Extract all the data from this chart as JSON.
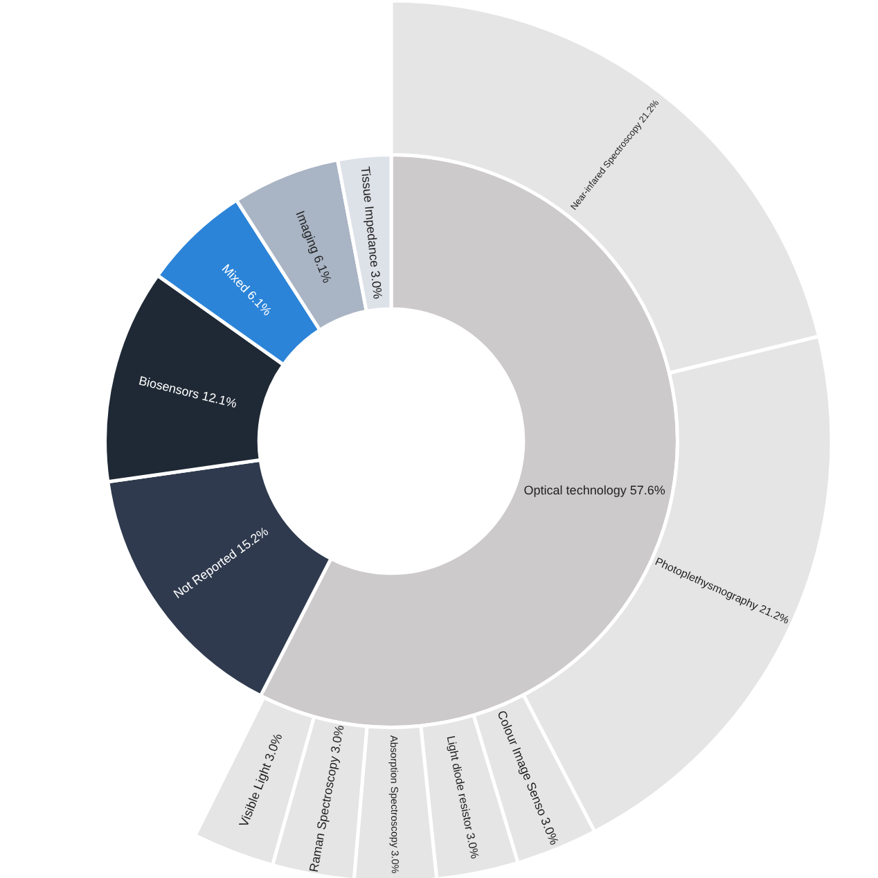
{
  "chart_data": {
    "type": "donut",
    "categories": [
      "Optical technology",
      "Not Reported",
      "Biosensors",
      "Mixed",
      "Imaging",
      "Tissue Impedance",
      "Near-infared Spectroscopy",
      "Photoplethysmography",
      "Colour Image Senso",
      "Light diode resistor",
      "Absorption Spectroscopy",
      "Raman Spectroscopy",
      "Visible Light"
    ],
    "series": [
      {
        "values": [
          57.6,
          15.2,
          12.1,
          6.1,
          6.1,
          3.0,
          null,
          null,
          null,
          null,
          null,
          null,
          null
        ],
        "value_labels": [
          "57.6%",
          "15.2%",
          "12.1%",
          "6.1%",
          "6.1%",
          "3.0%",
          null,
          null,
          null,
          null,
          null,
          null,
          null
        ],
        "colors": [
          "#cdcacb",
          "#2f3a4e",
          "#1f2935",
          "#2b84d8",
          "#a9b4c4",
          "#dde1e8",
          null,
          null,
          null,
          null,
          null,
          null,
          null
        ]
      },
      {
        "values": [
          null,
          null,
          null,
          null,
          null,
          null,
          21.2,
          21.2,
          3.0,
          3.0,
          3.0,
          3.0,
          3.0
        ],
        "value_labels": [
          null,
          null,
          null,
          null,
          null,
          null,
          "21.2%",
          "21.2%",
          "3.0%",
          "3.0%",
          "3.0%",
          "3.0%",
          "3.0%"
        ],
        "colors": [
          null,
          null,
          null,
          null,
          null,
          null,
          "#e5e5e5",
          "#e5e5e5",
          "#e5e5e5",
          "#e5e5e5",
          "#e5e5e5",
          "#e5e5e5",
          "#e5e5e5"
        ]
      }
    ]
  }
}
